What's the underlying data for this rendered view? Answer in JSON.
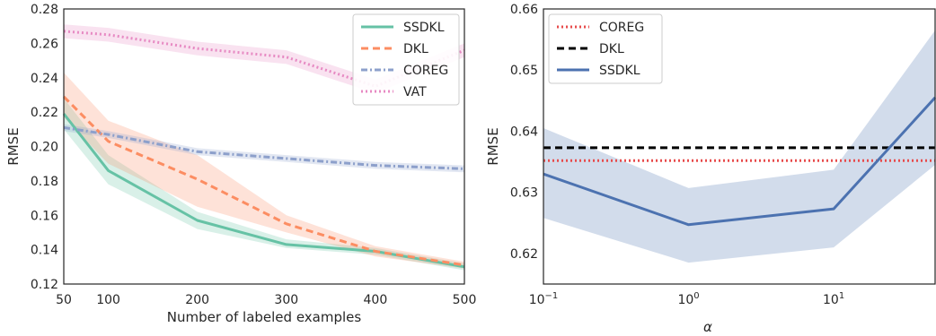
{
  "chart_data": [
    {
      "type": "line",
      "xlabel": "Number of labeled examples",
      "ylabel": "RMSE",
      "x_scale": "linear",
      "xlim": [
        50,
        500
      ],
      "ylim": [
        0.12,
        0.28
      ],
      "x_ticks": [
        50,
        100,
        200,
        300,
        400,
        500
      ],
      "x_tick_labels": [
        "50",
        "100",
        "200",
        "300",
        "400",
        "500"
      ],
      "y_ticks": [
        0.12,
        0.14,
        0.16,
        0.18,
        0.2,
        0.22,
        0.24,
        0.26,
        0.28
      ],
      "y_tick_labels": [
        "0.12",
        "0.14",
        "0.16",
        "0.18",
        "0.20",
        "0.22",
        "0.24",
        "0.26",
        "0.28"
      ],
      "grid": false,
      "legend_position": "top-right",
      "x": [
        50,
        100,
        200,
        300,
        400,
        500
      ],
      "series": [
        {
          "name": "SSDKL",
          "color": "#66c2a5",
          "dash": "solid",
          "values": [
            0.219,
            0.186,
            0.157,
            0.143,
            0.139,
            0.13
          ],
          "lower": [
            0.21,
            0.178,
            0.152,
            0.141,
            0.137,
            0.128
          ],
          "upper": [
            0.228,
            0.195,
            0.162,
            0.146,
            0.141,
            0.132
          ]
        },
        {
          "name": "DKL",
          "color": "#fc8d62",
          "dash": "dashed",
          "values": [
            0.229,
            0.203,
            0.181,
            0.155,
            0.139,
            0.131
          ],
          "lower": [
            0.217,
            0.19,
            0.165,
            0.15,
            0.136,
            0.129
          ],
          "upper": [
            0.243,
            0.215,
            0.195,
            0.16,
            0.142,
            0.133
          ]
        },
        {
          "name": "COREG",
          "color": "#8da0cb",
          "dash": "dashdot",
          "values": [
            0.211,
            0.207,
            0.197,
            0.193,
            0.189,
            0.187
          ],
          "lower": [
            0.209,
            0.205,
            0.195,
            0.191,
            0.187,
            0.185
          ],
          "upper": [
            0.213,
            0.209,
            0.199,
            0.195,
            0.191,
            0.189
          ]
        },
        {
          "name": "VAT",
          "color": "#e78ac3",
          "dash": "dotted",
          "values": [
            0.267,
            0.265,
            0.257,
            0.252,
            0.235,
            0.256
          ],
          "lower": [
            0.263,
            0.261,
            0.253,
            0.248,
            0.231,
            0.252
          ],
          "upper": [
            0.271,
            0.269,
            0.261,
            0.256,
            0.239,
            0.26
          ]
        }
      ]
    },
    {
      "type": "line",
      "xlabel": "α",
      "ylabel": "RMSE",
      "x_scale": "log",
      "xlim": [
        0.1,
        50
      ],
      "ylim": [
        0.615,
        0.66
      ],
      "x_ticks": [
        0.1,
        1,
        10
      ],
      "x_tick_labels": [
        {
          "base": "10",
          "exp": "−1"
        },
        {
          "base": "10",
          "exp": "0"
        },
        {
          "base": "10",
          "exp": "1"
        }
      ],
      "y_ticks": [
        0.62,
        0.63,
        0.64,
        0.65,
        0.66
      ],
      "y_tick_labels": [
        "0.62",
        "0.63",
        "0.64",
        "0.65",
        "0.66"
      ],
      "grid": false,
      "legend_position": "top-left",
      "series": [
        {
          "name": "COREG",
          "color": "#e74c4c",
          "dash": "dotted",
          "x": [
            0.1,
            50
          ],
          "values": [
            0.6352,
            0.6352
          ]
        },
        {
          "name": "DKL",
          "color": "#000000",
          "dash": "dashed",
          "x": [
            0.1,
            50
          ],
          "values": [
            0.6373,
            0.6373
          ]
        },
        {
          "name": "SSDKL",
          "color": "#4c72b0",
          "dash": "solid",
          "x": [
            0.1,
            1,
            10,
            50
          ],
          "values": [
            0.633,
            0.6247,
            0.6273,
            0.6455
          ],
          "lower": [
            0.6258,
            0.6185,
            0.621,
            0.6345
          ],
          "upper": [
            0.6405,
            0.6307,
            0.6337,
            0.6565
          ]
        }
      ]
    }
  ]
}
